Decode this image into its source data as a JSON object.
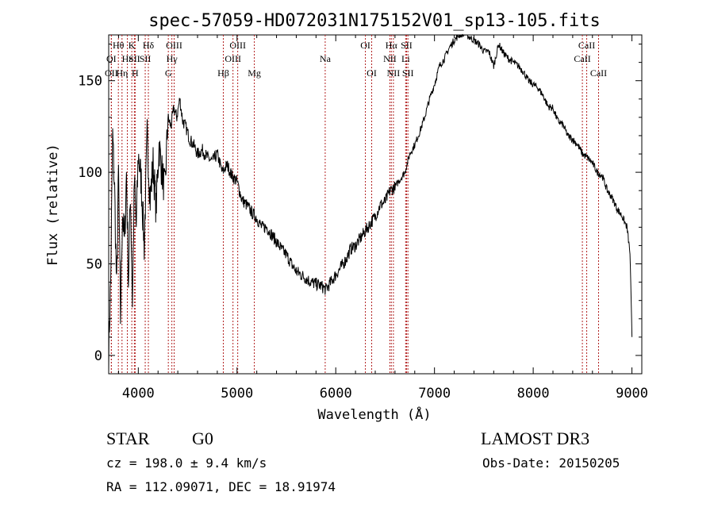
{
  "chart_data": {
    "type": "line",
    "title": "spec-57059-HD072031N175152V01_sp13-105.fits",
    "xlabel": "Wavelength (Å)",
    "ylabel": "Flux (relative)",
    "xlim": [
      3700,
      9100
    ],
    "ylim": [
      -10,
      175
    ],
    "xticks": [
      4000,
      5000,
      6000,
      7000,
      8000,
      9000
    ],
    "yticks": [
      0,
      50,
      100,
      150
    ],
    "series": [
      {
        "name": "flux",
        "x": [
          3700,
          3720,
          3740,
          3760,
          3780,
          3800,
          3820,
          3840,
          3860,
          3880,
          3900,
          3920,
          3940,
          3960,
          3980,
          4000,
          4030,
          4060,
          4090,
          4120,
          4150,
          4180,
          4210,
          4240,
          4270,
          4300,
          4330,
          4360,
          4390,
          4420,
          4450,
          4480,
          4520,
          4560,
          4600,
          4650,
          4700,
          4750,
          4800,
          4850,
          4900,
          4950,
          5000,
          5050,
          5100,
          5150,
          5200,
          5250,
          5300,
          5350,
          5400,
          5450,
          5500,
          5550,
          5600,
          5650,
          5700,
          5750,
          5800,
          5850,
          5900,
          5950,
          6000,
          6050,
          6100,
          6150,
          6200,
          6250,
          6300,
          6350,
          6400,
          6450,
          6500,
          6550,
          6600,
          6650,
          6700,
          6750,
          6800,
          6850,
          6900,
          6950,
          7000,
          7050,
          7100,
          7150,
          7200,
          7250,
          7300,
          7350,
          7400,
          7450,
          7500,
          7550,
          7600,
          7650,
          7700,
          7750,
          7800,
          7850,
          7900,
          7950,
          8000,
          8050,
          8100,
          8150,
          8200,
          8250,
          8300,
          8350,
          8400,
          8450,
          8500,
          8550,
          8600,
          8650,
          8700,
          8750,
          8800,
          8850,
          8900,
          8950,
          8980,
          9000
        ],
        "values": [
          2,
          40,
          120,
          90,
          35,
          100,
          20,
          80,
          60,
          100,
          40,
          90,
          30,
          95,
          70,
          110,
          95,
          60,
          120,
          85,
          105,
          80,
          115,
          100,
          90,
          130,
          125,
          135,
          130,
          140,
          128,
          125,
          118,
          115,
          110,
          112,
          108,
          106,
          110,
          100,
          104,
          98,
          95,
          85,
          82,
          78,
          75,
          70,
          70,
          66,
          62,
          58,
          55,
          50,
          46,
          44,
          42,
          40,
          39,
          38,
          36,
          40,
          44,
          48,
          52,
          58,
          60,
          64,
          68,
          72,
          76,
          82,
          84,
          90,
          92,
          96,
          100,
          110,
          115,
          122,
          130,
          140,
          148,
          158,
          162,
          168,
          172,
          175,
          176,
          174,
          172,
          170,
          166,
          166,
          158,
          170,
          165,
          162,
          160,
          158,
          155,
          150,
          148,
          146,
          142,
          136,
          135,
          128,
          126,
          120,
          118,
          115,
          110,
          108,
          105,
          100,
          98,
          90,
          86,
          80,
          76,
          70,
          56,
          10
        ]
      }
    ],
    "spectral_lines": [
      {
        "label": "OII",
        "x": 3727,
        "row": 2
      },
      {
        "label": "OI",
        "x": 3727,
        "row": 1
      },
      {
        "label": "Hθ",
        "x": 3798,
        "row": 0
      },
      {
        "label": "Hη",
        "x": 3835,
        "row": 2
      },
      {
        "label": "Hε",
        "x": 3889,
        "row": 1
      },
      {
        "label": "K",
        "x": 3934,
        "row": 0
      },
      {
        "label": "SII",
        "x": 3960,
        "row": 1
      },
      {
        "label": "H",
        "x": 3968,
        "row": 2
      },
      {
        "label": "Hδ",
        "x": 4102,
        "row": 0
      },
      {
        "label": "SII",
        "x": 4070,
        "row": 1
      },
      {
        "label": "OIII",
        "x": 4363,
        "row": 0
      },
      {
        "label": "Hγ",
        "x": 4340,
        "row": 1
      },
      {
        "label": "G",
        "x": 4304,
        "row": 2
      },
      {
        "label": "Hβ",
        "x": 4861,
        "row": 2
      },
      {
        "label": "OIII",
        "x": 5007,
        "row": 0
      },
      {
        "label": "OIII",
        "x": 4959,
        "row": 1
      },
      {
        "label": "Mg",
        "x": 5175,
        "row": 2
      },
      {
        "label": "Na",
        "x": 5893,
        "row": 1
      },
      {
        "label": "OI",
        "x": 6300,
        "row": 0
      },
      {
        "label": "OI",
        "x": 6364,
        "row": 2
      },
      {
        "label": "Hα",
        "x": 6563,
        "row": 0
      },
      {
        "label": "NII",
        "x": 6548,
        "row": 1
      },
      {
        "label": "NII",
        "x": 6584,
        "row": 2
      },
      {
        "label": "SII",
        "x": 6717,
        "row": 0
      },
      {
        "label": "Li",
        "x": 6708,
        "row": 1
      },
      {
        "label": "SII",
        "x": 6731,
        "row": 2
      },
      {
        "label": "CaII",
        "x": 8542,
        "row": 0
      },
      {
        "label": "CaII",
        "x": 8498,
        "row": 1
      },
      {
        "label": "CaII",
        "x": 8662,
        "row": 2
      }
    ]
  },
  "info": {
    "object_type": "STAR",
    "subclass": "G0",
    "survey": "LAMOST DR3",
    "redshift": "cz =  198.0 ± 9.4 km/s",
    "obs_date": "Obs-Date: 20150205",
    "coords": "RA = 112.09071, DEC =  18.91974"
  }
}
